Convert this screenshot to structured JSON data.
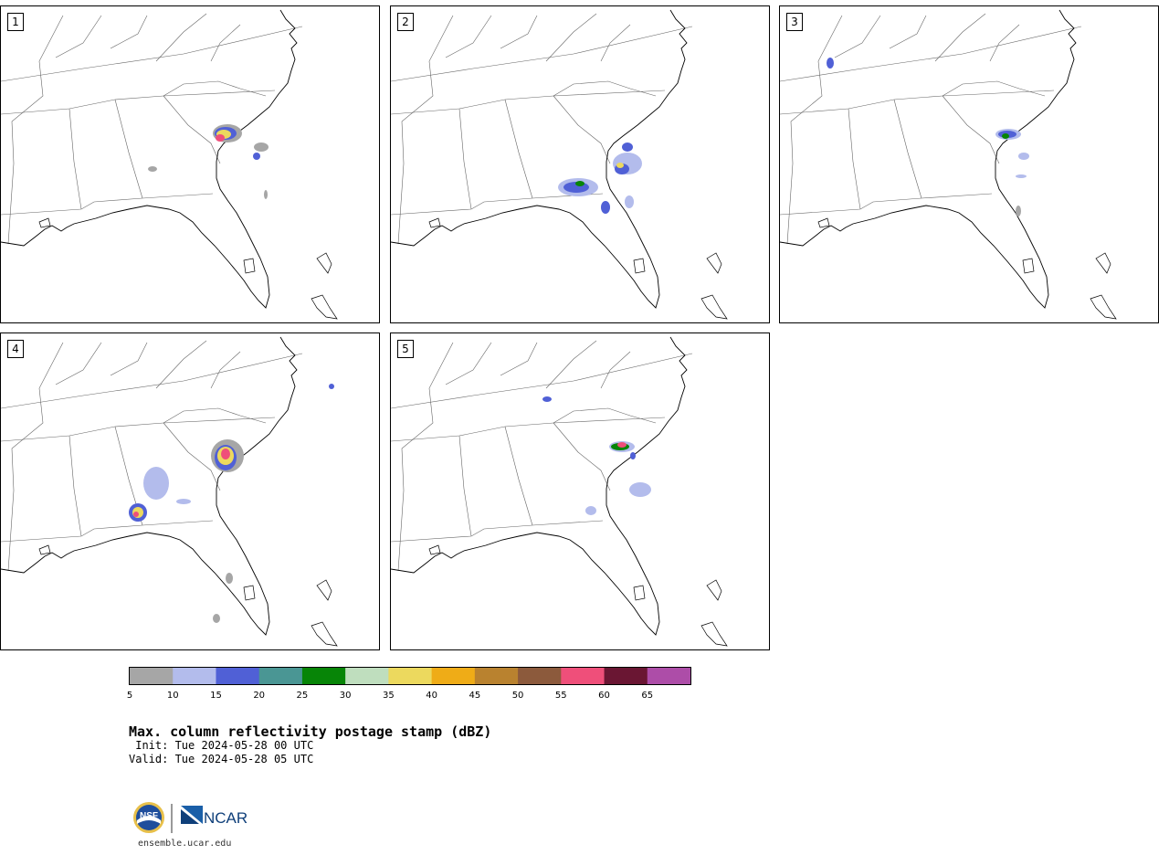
{
  "panels": [
    {
      "number": "1"
    },
    {
      "number": "2"
    },
    {
      "number": "3"
    },
    {
      "number": "4"
    },
    {
      "number": "5"
    }
  ],
  "colorbar": {
    "ticks": [
      "5",
      "10",
      "15",
      "20",
      "25",
      "30",
      "35",
      "40",
      "45",
      "50",
      "55",
      "60",
      "65"
    ],
    "colors": [
      "#a6a6a6",
      "#b3bcec",
      "#5060d6",
      "#4a9694",
      "#078507",
      "#bfdebe",
      "#ecd95e",
      "#efac17",
      "#b9822f",
      "#8c5a3c",
      "#ef4f7a",
      "#6a1633",
      "#ad4da8"
    ]
  },
  "title": "Max. column reflectivity postage stamp (dBZ)",
  "init_line": " Init: Tue 2024-05-28 00 UTC",
  "valid_line": "Valid: Tue 2024-05-28 05 UTC",
  "logo": {
    "nsf_text": "NSF",
    "ncar_text": "NCAR"
  },
  "url": "ensemble.ucar.edu"
}
